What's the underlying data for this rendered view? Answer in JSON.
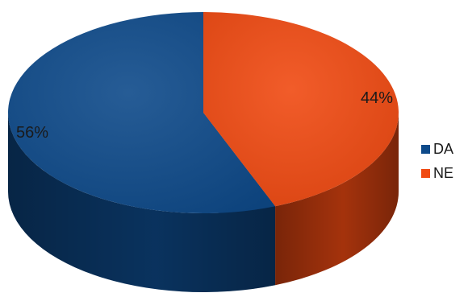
{
  "chart_data": {
    "type": "pie",
    "style": "3d",
    "categories": [
      "DA",
      "NE"
    ],
    "values": [
      56,
      44
    ],
    "data_labels": [
      "56%",
      "44%"
    ],
    "colors": [
      "#0e4a8a",
      "#f04a12"
    ],
    "legend": {
      "placement": "right",
      "entries": [
        "DA",
        "NE"
      ]
    }
  }
}
